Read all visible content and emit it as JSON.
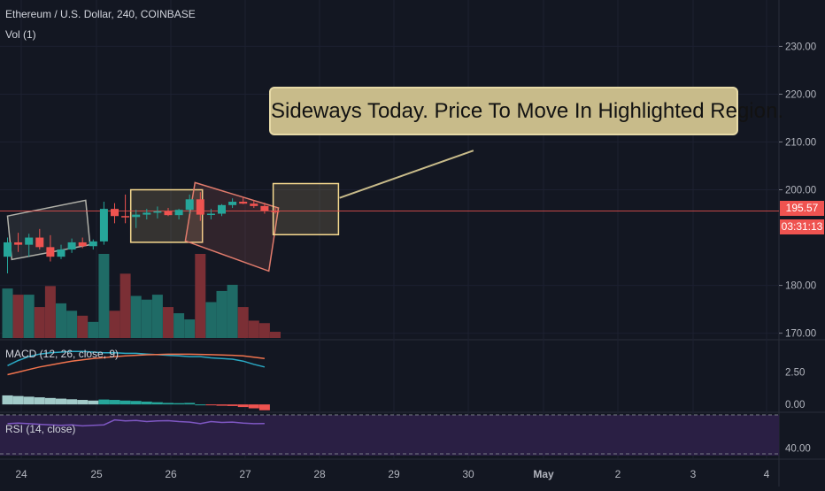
{
  "header": {
    "symbol": "Ethereum / U.S. Dollar, 240, COINBASE",
    "volume": "Vol (1)",
    "macd": "MACD (12, 26, close, 9)",
    "rsi": "RSI (14, close)"
  },
  "annotation": "Sideways Today. Price To Move In Highlighted Region.",
  "price_label": "195.57",
  "countdown": "03:31:13",
  "colors": {
    "background": "#131722",
    "up": "#26a69a",
    "down": "#ef5350",
    "volume_up": "#1f6b66",
    "volume_down": "#7b2f35",
    "box_border": "#f6d98f",
    "macd_line": "#2aa8c3",
    "signal_line": "#f0734d",
    "rsi_line": "#7e57c2",
    "rsi_band": "#2a1f44"
  },
  "chart_data": [
    {
      "type": "candlestick",
      "ylim": [
        169,
        236
      ],
      "y_ticks": [
        "230.00",
        "220.00",
        "210.00",
        "200.00",
        "180.00",
        "170.00"
      ],
      "x_ticks": [
        "24",
        "25",
        "26",
        "27",
        "28",
        "29",
        "30",
        "May",
        "2",
        "3",
        "4"
      ],
      "candles": [
        {
          "o": 186.0,
          "h": 190.0,
          "l": 182.5,
          "c": 189.0
        },
        {
          "o": 189.0,
          "h": 191.0,
          "l": 187.0,
          "c": 188.5
        },
        {
          "o": 188.5,
          "h": 190.8,
          "l": 186.0,
          "c": 190.0
        },
        {
          "o": 190.0,
          "h": 191.8,
          "l": 187.5,
          "c": 188.0
        },
        {
          "o": 188.0,
          "h": 190.5,
          "l": 185.0,
          "c": 186.0
        },
        {
          "o": 186.0,
          "h": 188.5,
          "l": 185.5,
          "c": 187.5
        },
        {
          "o": 187.5,
          "h": 189.8,
          "l": 186.8,
          "c": 189.0
        },
        {
          "o": 189.0,
          "h": 190.0,
          "l": 187.8,
          "c": 188.2
        },
        {
          "o": 188.2,
          "h": 189.6,
          "l": 187.5,
          "c": 189.2
        },
        {
          "o": 189.2,
          "h": 197.5,
          "l": 188.5,
          "c": 196.0
        },
        {
          "o": 196.0,
          "h": 197.2,
          "l": 193.0,
          "c": 194.5
        },
        {
          "o": 194.5,
          "h": 199.0,
          "l": 193.0,
          "c": 194.3
        },
        {
          "o": 194.3,
          "h": 195.8,
          "l": 192.0,
          "c": 194.8
        },
        {
          "o": 194.8,
          "h": 196.0,
          "l": 193.8,
          "c": 195.2
        },
        {
          "o": 195.2,
          "h": 196.5,
          "l": 194.0,
          "c": 195.5
        },
        {
          "o": 195.5,
          "h": 196.2,
          "l": 194.5,
          "c": 194.7
        },
        {
          "o": 194.7,
          "h": 196.0,
          "l": 193.8,
          "c": 195.8
        },
        {
          "o": 195.8,
          "h": 199.0,
          "l": 195.0,
          "c": 198.0
        },
        {
          "o": 198.0,
          "h": 199.5,
          "l": 193.5,
          "c": 194.8
        },
        {
          "o": 194.8,
          "h": 196.0,
          "l": 193.8,
          "c": 195.0
        },
        {
          "o": 195.0,
          "h": 197.0,
          "l": 194.5,
          "c": 196.8
        },
        {
          "o": 196.8,
          "h": 198.2,
          "l": 196.2,
          "c": 197.5
        },
        {
          "o": 197.5,
          "h": 198.5,
          "l": 197.0,
          "c": 197.1
        },
        {
          "o": 197.1,
          "h": 197.8,
          "l": 196.2,
          "c": 196.6
        },
        {
          "o": 196.6,
          "h": 197.3,
          "l": 195.0,
          "c": 195.6
        },
        {
          "o": 195.6,
          "h": 196.2,
          "l": 195.0,
          "c": 195.57
        }
      ],
      "volume": [
        4,
        3.5,
        3.5,
        2.5,
        4.2,
        2.8,
        2.2,
        1.8,
        1.3,
        6.8,
        2.2,
        5.2,
        3.4,
        3.1,
        3.5,
        2.5,
        2,
        1.5,
        6.8,
        2.9,
        3.8,
        4.3,
        2.5,
        1.4,
        1.2,
        0.5
      ],
      "current_price": 195.57,
      "annotation_boxes": [
        {
          "corners": [
            [
              0,
              194.5
            ],
            [
              7.3,
              197.8
            ],
            [
              7.7,
              188.5
            ],
            [
              0.4,
              185.4
            ]
          ],
          "border": "#b0b0a8"
        },
        {
          "corners": [
            [
              11.5,
              200.0
            ],
            [
              18.2,
              200.0
            ],
            [
              18.2,
              189.0
            ],
            [
              11.5,
              189.0
            ]
          ],
          "border": "#f6d98f"
        },
        {
          "corners": [
            [
              17.5,
              201.5
            ],
            [
              25.3,
              196.2
            ],
            [
              24.4,
              183.0
            ],
            [
              16.6,
              189.3
            ]
          ],
          "border": "#e07b6c"
        },
        {
          "corners": [
            [
              24.8,
              201.3
            ],
            [
              30.9,
              201.3
            ],
            [
              30.9,
              190.6
            ],
            [
              24.8,
              190.6
            ]
          ],
          "border": "#f6d98f"
        }
      ],
      "pointer_line": {
        "from": [
          31.0,
          198.3
        ],
        "to": [
          43.5,
          208.2
        ]
      }
    },
    {
      "type": "line",
      "title": "MACD (12, 26, close, 9)",
      "ylim": [
        -0.4,
        4.8
      ],
      "y_ticks": [
        "2.50",
        "0.00"
      ],
      "series": [
        {
          "values": [
            3.0,
            3.4,
            3.7,
            3.9,
            4.0,
            4.05,
            4.1,
            4.1,
            4.05,
            4.0,
            4.0,
            3.95,
            3.95,
            3.9,
            3.85,
            3.8,
            3.75,
            3.7,
            3.7,
            3.6,
            3.55,
            3.5,
            3.35,
            3.1,
            2.9
          ]
        },
        {
          "values": [
            2.3,
            2.5,
            2.7,
            2.9,
            3.05,
            3.2,
            3.35,
            3.45,
            3.55,
            3.62,
            3.7,
            3.76,
            3.8,
            3.84,
            3.86,
            3.88,
            3.88,
            3.88,
            3.87,
            3.85,
            3.83,
            3.8,
            3.75,
            3.65,
            3.55
          ]
        }
      ],
      "histogram": [
        0.7,
        0.65,
        0.6,
        0.55,
        0.5,
        0.45,
        0.4,
        0.35,
        0.3,
        0.38,
        0.35,
        0.3,
        0.27,
        0.22,
        0.17,
        0.12,
        0.1,
        0.12,
        0.0,
        -0.05,
        -0.1,
        -0.12,
        -0.2,
        -0.3,
        -0.45
      ]
    },
    {
      "type": "line",
      "title": "RSI (14, close)",
      "ylim": [
        33,
        70
      ],
      "y_ticks": [
        "40.00"
      ],
      "band": [
        30,
        70
      ],
      "series": [
        {
          "values": [
            62,
            62.5,
            62,
            61.5,
            61,
            60.5,
            61,
            60,
            60.5,
            61,
            65.5,
            64.5,
            65,
            64,
            64.5,
            64.8,
            64,
            63.5,
            62,
            64,
            63.2,
            63.5,
            62.5,
            62,
            62.2
          ]
        }
      ]
    }
  ]
}
